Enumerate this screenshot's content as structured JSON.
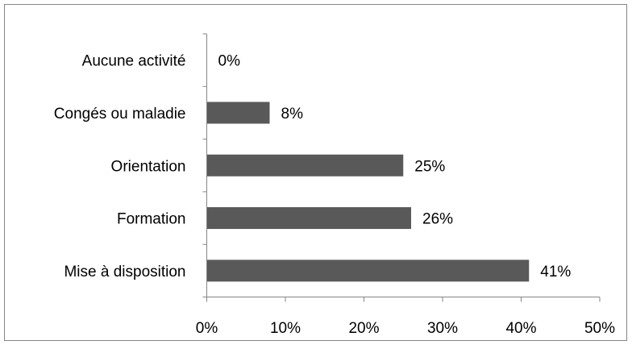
{
  "chart_data": {
    "type": "bar",
    "orientation": "horizontal",
    "categories": [
      "Aucune activité",
      "Congés ou maladie",
      "Orientation",
      "Formation",
      "Mise à disposition"
    ],
    "values": [
      0,
      8,
      25,
      26,
      41
    ],
    "data_labels": [
      "0%",
      "8%",
      "25%",
      "26%",
      "41%"
    ],
    "x_ticks": [
      0,
      10,
      20,
      30,
      40,
      50
    ],
    "x_tick_labels": [
      "0%",
      "10%",
      "20%",
      "30%",
      "40%",
      "50%"
    ],
    "xlim": [
      0,
      50
    ],
    "grid": false,
    "legend": "none",
    "bar_color": "#595959",
    "axis_color": "#868686"
  }
}
